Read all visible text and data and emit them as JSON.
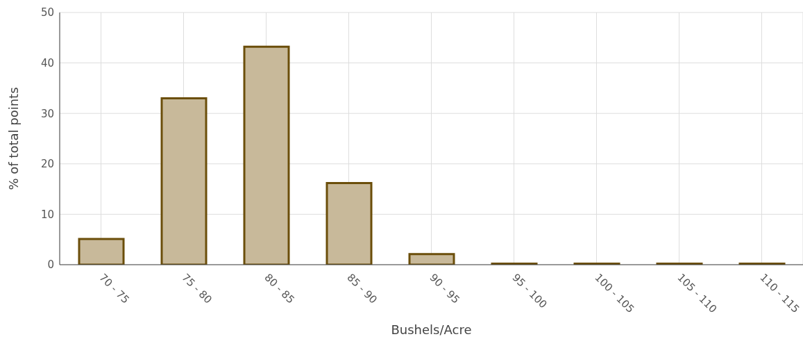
{
  "chart_data": {
    "type": "bar",
    "xlabel": "Bushels/Acre",
    "ylabel": "% of total points",
    "categories": [
      "70 - 75",
      "75 - 80",
      "80 - 85",
      "85 - 90",
      "90 - 95",
      "95 - 100",
      "100 - 105",
      "105 - 110",
      "110 - 115"
    ],
    "values": [
      5.1,
      33,
      43.2,
      16.2,
      2.1,
      0.2,
      0.2,
      0.2,
      0.2
    ],
    "color": "#c8b99a",
    "ylim": [
      0,
      50
    ],
    "yticks": [
      0,
      10,
      20,
      30,
      40,
      50
    ],
    "grid": true
  }
}
